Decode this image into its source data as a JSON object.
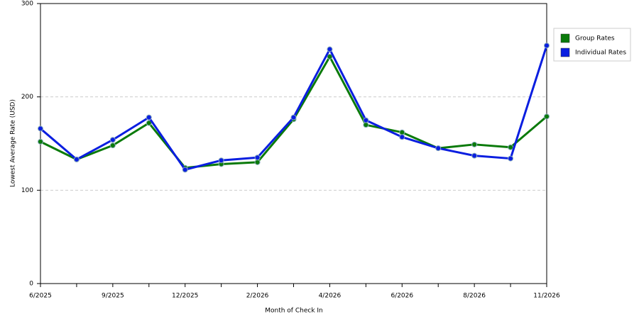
{
  "chart_data": {
    "type": "line",
    "x_label": "Month of Check In",
    "y_label": "Lowest Average Rate (USD)",
    "categories": [
      "6/2025",
      null,
      "9/2025",
      null,
      "12/2025",
      null,
      "2/2026",
      null,
      "4/2026",
      null,
      "6/2026",
      null,
      "8/2026",
      null,
      "11/2026"
    ],
    "series": [
      {
        "name": "Group Rates",
        "color": "#0a7a0a",
        "values": [
          152,
          133,
          148,
          172,
          124,
          128,
          130,
          176,
          243,
          170,
          162,
          145,
          149,
          146,
          179
        ]
      },
      {
        "name": "Individual Rates",
        "color": "#0a1ee0",
        "values": [
          166,
          133,
          154,
          178,
          122,
          132,
          135,
          178,
          251,
          175,
          157,
          145,
          137,
          134,
          255
        ]
      }
    ],
    "ylim": [
      0,
      300
    ],
    "yticks": [
      0,
      100,
      200,
      300
    ],
    "grid": true,
    "legend": "right"
  }
}
